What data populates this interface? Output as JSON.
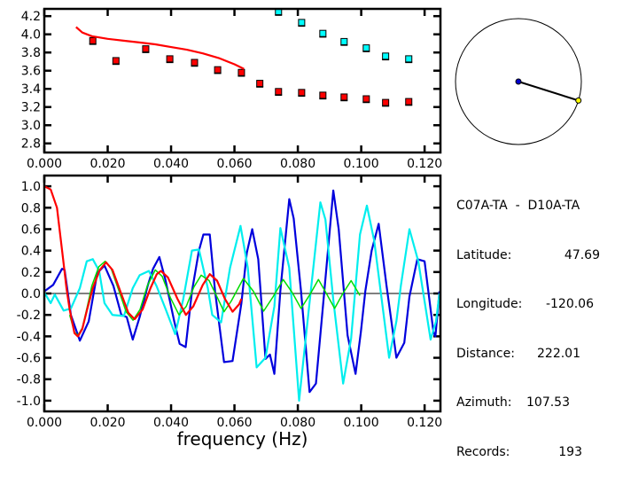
{
  "chart_data": [
    {
      "type": "scatter",
      "xlim": [
        0,
        0.125
      ],
      "ylim": [
        2.7,
        4.28
      ],
      "xticks": [
        "0.000",
        "0.020",
        "0.040",
        "0.060",
        "0.080",
        "0.100",
        "0.120"
      ],
      "yticks": [
        "4.2",
        "4.0",
        "3.8",
        "3.6",
        "3.4",
        "3.2",
        "3.0",
        "2.8"
      ],
      "series": [
        {
          "color": "#ff0000",
          "marker": "square",
          "x": [
            0.0153,
            0.0226,
            0.032,
            0.0396,
            0.0474,
            0.0547,
            0.0622,
            0.068,
            0.0739,
            0.0812,
            0.0879,
            0.0946,
            0.1016,
            0.1077,
            0.115
          ],
          "y": [
            3.93,
            3.71,
            3.84,
            3.73,
            3.69,
            3.61,
            3.58,
            3.46,
            3.37,
            3.36,
            3.33,
            3.31,
            3.29,
            3.25,
            3.26
          ]
        },
        {
          "color": "#00ffff",
          "marker": "square",
          "x": [
            0.0739,
            0.0812,
            0.0879,
            0.0946,
            0.1016,
            0.1077,
            0.115
          ],
          "y": [
            4.25,
            4.13,
            4.01,
            3.92,
            3.85,
            3.76,
            3.73
          ]
        },
        {
          "color": "#ff0000",
          "marker": "line",
          "x": [
            0.01,
            0.012,
            0.015,
            0.02,
            0.025,
            0.03,
            0.035,
            0.04,
            0.045,
            0.05,
            0.055,
            0.06,
            0.063
          ],
          "y": [
            4.08,
            4.02,
            3.98,
            3.95,
            3.93,
            3.91,
            3.89,
            3.86,
            3.83,
            3.79,
            3.74,
            3.67,
            3.62
          ]
        }
      ]
    },
    {
      "type": "line",
      "xlabel": "frequency (Hz)",
      "xlim": [
        0,
        0.125
      ],
      "ylim": [
        -1.1,
        1.1
      ],
      "xticks": [
        "0.000",
        "0.020",
        "0.040",
        "0.060",
        "0.080",
        "0.100",
        "0.120"
      ],
      "yticks": [
        "1.0",
        "0.8",
        "0.6",
        "0.4",
        "0.2",
        "0.0",
        "-0.2",
        "-0.4",
        "-0.6",
        "-0.8",
        "-1.0"
      ],
      "series": [
        {
          "color": "#0000dd",
          "x": [
            0,
            0.0028,
            0.0056,
            0.0064,
            0.0084,
            0.0112,
            0.014,
            0.0167,
            0.019,
            0.0218,
            0.0243,
            0.026,
            0.0279,
            0.0301,
            0.0326,
            0.0343,
            0.0363,
            0.0382,
            0.041,
            0.0427,
            0.0446,
            0.0466,
            0.0488,
            0.0502,
            0.0522,
            0.0539,
            0.0567,
            0.0594,
            0.0622,
            0.0639,
            0.0656,
            0.0675,
            0.0698,
            0.0712,
            0.0726,
            0.0745,
            0.0773,
            0.0787,
            0.081,
            0.0837,
            0.0857,
            0.0885,
            0.0912,
            0.0929,
            0.0957,
            0.0982,
            0.0999,
            0.1013,
            0.1033,
            0.1055,
            0.108,
            0.1111,
            0.1136,
            0.1152,
            0.1177,
            0.12,
            0.1228,
            0.1234,
            0.1247
          ],
          "y": [
            0.02,
            0.08,
            0.23,
            0.22,
            -0.2,
            -0.44,
            -0.26,
            0.19,
            0.26,
            0.07,
            -0.2,
            -0.22,
            -0.43,
            -0.22,
            0.07,
            0.23,
            0.34,
            0.13,
            -0.26,
            -0.47,
            -0.5,
            0.02,
            0.4,
            0.55,
            0.55,
            0.02,
            -0.64,
            -0.63,
            -0.09,
            0.38,
            0.6,
            0.32,
            -0.61,
            -0.57,
            -0.75,
            0.03,
            0.88,
            0.7,
            0.02,
            -0.92,
            -0.84,
            0.07,
            0.96,
            0.6,
            -0.39,
            -0.75,
            -0.36,
            0.02,
            0.4,
            0.65,
            0.07,
            -0.6,
            -0.46,
            -0.03,
            0.32,
            0.3,
            -0.36,
            -0.4,
            0.02
          ]
        },
        {
          "color": "#00eeee",
          "x": [
            0,
            0.002,
            0.0033,
            0.0061,
            0.0084,
            0.0112,
            0.0134,
            0.0153,
            0.0173,
            0.019,
            0.0215,
            0.0251,
            0.0279,
            0.0301,
            0.033,
            0.0354,
            0.0382,
            0.0413,
            0.0438,
            0.0466,
            0.0488,
            0.0516,
            0.053,
            0.0558,
            0.0586,
            0.0619,
            0.0642,
            0.067,
            0.0698,
            0.0726,
            0.0745,
            0.0773,
            0.0804,
            0.0829,
            0.0871,
            0.0887,
            0.0912,
            0.0943,
            0.0968,
            0.0996,
            0.1018,
            0.1041,
            0.1088,
            0.1111,
            0.1125,
            0.1152,
            0.118,
            0.1219,
            0.1236,
            0.1247
          ],
          "y": [
            0.01,
            -0.09,
            -0.01,
            -0.16,
            -0.14,
            0.05,
            0.3,
            0.32,
            0.21,
            -0.09,
            -0.2,
            -0.21,
            0.05,
            0.17,
            0.21,
            0.07,
            -0.14,
            -0.38,
            -0.06,
            0.4,
            0.41,
            0.05,
            -0.2,
            -0.27,
            0.24,
            0.63,
            0.24,
            -0.69,
            -0.6,
            -0.12,
            0.61,
            0.24,
            -1.0,
            -0.3,
            0.85,
            0.69,
            -0.06,
            -0.84,
            -0.42,
            0.55,
            0.82,
            0.49,
            -0.6,
            -0.26,
            0.07,
            0.6,
            0.3,
            -0.43,
            -0.26,
            0.0
          ]
        },
        {
          "color": "#00dd00",
          "x": [
            0.008,
            0.0095,
            0.0106,
            0.012,
            0.0135,
            0.015,
            0.0172,
            0.0192,
            0.021,
            0.0235,
            0.0258,
            0.028,
            0.0302,
            0.0325,
            0.035,
            0.0372,
            0.0398,
            0.0425,
            0.0448,
            0.0472,
            0.0495,
            0.052,
            0.0543,
            0.0567,
            0.059,
            0.0628,
            0.066,
            0.0692,
            0.0722,
            0.0754,
            0.0782,
            0.081,
            0.0838,
            0.0865,
            0.089,
            0.0916,
            0.0942,
            0.0968,
            0.0996
          ],
          "y": [
            -0.2,
            -0.36,
            -0.39,
            -0.32,
            -0.13,
            0.07,
            0.25,
            0.3,
            0.24,
            0.03,
            -0.17,
            -0.25,
            -0.15,
            0.07,
            0.22,
            0.16,
            -0.04,
            -0.2,
            -0.12,
            0.06,
            0.17,
            0.12,
            -0.02,
            -0.17,
            -0.07,
            0.14,
            0.02,
            -0.165,
            -0.03,
            0.13,
            0.01,
            -0.14,
            -0.01,
            0.13,
            0.0,
            -0.14,
            0.0,
            0.12,
            -0.02
          ]
        },
        {
          "color": "#ff0000",
          "x": [
            0,
            0.002,
            0.004,
            0.006,
            0.007,
            0.008,
            0.0095,
            0.0106,
            0.012,
            0.0135,
            0.0153,
            0.0175,
            0.0195,
            0.0215,
            0.024,
            0.0265,
            0.0285,
            0.031,
            0.0335,
            0.0355,
            0.0368,
            0.039,
            0.042,
            0.0447,
            0.047,
            0.05,
            0.0522,
            0.0545,
            0.057,
            0.0594,
            0.0615,
            0.0622
          ],
          "y": [
            1.0,
            0.97,
            0.8,
            0.3,
            0.05,
            -0.15,
            -0.37,
            -0.4,
            -0.33,
            -0.15,
            0.05,
            0.22,
            0.29,
            0.22,
            0.02,
            -0.18,
            -0.24,
            -0.15,
            0.05,
            0.18,
            0.21,
            0.15,
            -0.05,
            -0.2,
            -0.12,
            0.08,
            0.18,
            0.12,
            -0.05,
            -0.17,
            -0.1,
            -0.05
          ]
        }
      ]
    }
  ],
  "map": {
    "azimuth_deg": 107.53,
    "center_color": "#0000cc",
    "station_color": "#ffff00"
  },
  "info": {
    "pair": "C07A-TA  -  D10A-TA",
    "rows": [
      {
        "label": "Latitude:",
        "value": "47.69"
      },
      {
        "label": "Longitude:",
        "value": "-120.06"
      },
      {
        "label": "Distance:",
        "value": "222.01"
      },
      {
        "label": "Azimuth:",
        "value": "107.53"
      },
      {
        "label": "Records:",
        "value": "193"
      }
    ]
  }
}
